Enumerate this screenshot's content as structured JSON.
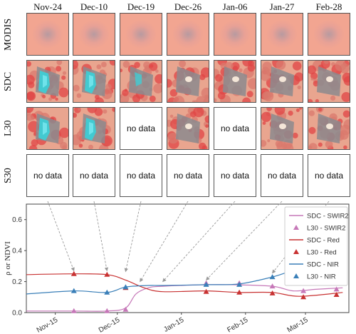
{
  "dates": [
    "Nov-24",
    "Dec-10",
    "Dec-19",
    "Dec-26",
    "Jan-06",
    "Jan-27",
    "Feb-28"
  ],
  "rows": [
    {
      "label": "MODIS",
      "cells": [
        "img-blur",
        "img-blur",
        "img-blur",
        "img-blur",
        "img-blur",
        "img-blur",
        "img-blur"
      ]
    },
    {
      "label": "SDC",
      "cells": [
        "img-flood",
        "img-flood",
        "img-partial",
        "img-dry",
        "img-dry",
        "img-dry",
        "img-dry"
      ]
    },
    {
      "label": "L30",
      "cells": [
        "img-flood",
        "img-flood",
        "nodata",
        "img-dry",
        "nodata",
        "img-dry",
        "img-dry"
      ]
    },
    {
      "label": "S30",
      "cells": [
        "nodata",
        "nodata",
        "nodata",
        "nodata",
        "nodata",
        "nodata",
        "nodata"
      ]
    }
  ],
  "nodata_text": "no data",
  "colors": {
    "swir2": "#c678b8",
    "red": "#c83232",
    "nir": "#3a7fb8",
    "arrow": "#999999",
    "tile_bg": "#f0a090",
    "water": "#3ad0d8",
    "soil": "#e04040"
  },
  "chart_data": {
    "type": "line",
    "xlabel": "",
    "ylabel": "ρ or NDVI",
    "ylim": [
      0,
      0.7
    ],
    "yticks": [
      "0.0",
      "0.2",
      "0.4",
      "0.6"
    ],
    "xticks": [
      "Nov-15",
      "Dec-15",
      "Jan-15",
      "Feb-15",
      "Mar-15"
    ],
    "x_range": [
      "2019-11-01",
      "2020-04-05"
    ],
    "grid": false,
    "legend": "top-right",
    "series": [
      {
        "name": "SDC - SWIR2",
        "kind": "line",
        "color": "#c678b8",
        "x": [
          "2019-11-01",
          "2019-11-24",
          "2019-12-10",
          "2019-12-19",
          "2019-12-24",
          "2019-12-30",
          "2020-01-06",
          "2020-01-27",
          "2020-02-08",
          "2020-02-28",
          "2020-03-09",
          "2020-03-20",
          "2020-04-02"
        ],
        "y": [
          0.01,
          0.01,
          0.01,
          0.03,
          0.12,
          0.16,
          0.17,
          0.18,
          0.18,
          0.17,
          0.14,
          0.15,
          0.16
        ]
      },
      {
        "name": "L30 - SWIR2",
        "kind": "marker",
        "color": "#c678b8",
        "x": [
          "2019-11-24",
          "2019-12-10",
          "2019-12-19",
          "2020-01-27",
          "2020-02-12",
          "2020-02-28",
          "2020-03-14",
          "2020-03-30"
        ],
        "y": [
          0.01,
          0.01,
          0.02,
          0.19,
          0.19,
          0.17,
          0.14,
          0.15
        ]
      },
      {
        "name": "SDC - Red",
        "kind": "line",
        "color": "#c83232",
        "x": [
          "2019-11-01",
          "2019-11-24",
          "2019-12-10",
          "2019-12-19",
          "2019-12-28",
          "2020-01-06",
          "2020-01-27",
          "2020-02-12",
          "2020-02-28",
          "2020-03-12",
          "2020-04-02"
        ],
        "y": [
          0.245,
          0.25,
          0.245,
          0.21,
          0.16,
          0.135,
          0.14,
          0.13,
          0.13,
          0.105,
          0.13
        ]
      },
      {
        "name": "L30 - Red",
        "kind": "marker",
        "color": "#c83232",
        "x": [
          "2019-11-24",
          "2019-12-10",
          "2019-12-19",
          "2020-01-27",
          "2020-02-12",
          "2020-02-28",
          "2020-03-14",
          "2020-03-30"
        ],
        "y": [
          0.25,
          0.245,
          0.16,
          0.135,
          0.13,
          0.125,
          0.1,
          0.115
        ]
      },
      {
        "name": "SDC - NIR",
        "kind": "line",
        "color": "#3a7fb8",
        "x": [
          "2019-11-01",
          "2019-11-24",
          "2019-12-10",
          "2019-12-19",
          "2019-12-30",
          "2020-01-06",
          "2020-01-27",
          "2020-02-12",
          "2020-02-28",
          "2020-03-14",
          "2020-04-02"
        ],
        "y": [
          0.12,
          0.14,
          0.13,
          0.165,
          0.175,
          0.175,
          0.18,
          0.185,
          0.23,
          0.285,
          0.28
        ]
      },
      {
        "name": "L30 - NIR",
        "kind": "marker",
        "color": "#3a7fb8",
        "x": [
          "2019-11-24",
          "2019-12-10",
          "2019-12-19",
          "2020-01-27",
          "2020-02-12",
          "2020-02-28",
          "2020-03-14",
          "2020-03-30"
        ],
        "y": [
          0.14,
          0.13,
          0.165,
          0.18,
          0.18,
          0.23,
          0.29,
          0.28
        ]
      }
    ]
  }
}
